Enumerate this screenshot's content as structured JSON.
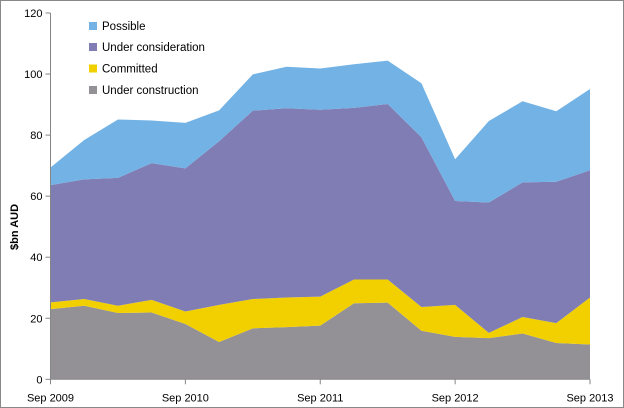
{
  "chart_data": {
    "type": "area",
    "stacked": true,
    "ylabel": "$bn AUD",
    "xlabel": "",
    "ylim": [
      0,
      120
    ],
    "yticks": [
      0,
      20,
      40,
      60,
      80,
      100,
      120
    ],
    "x_tick_labels": [
      "Sep 2009",
      "Sep 2010",
      "Sep 2011",
      "Sep 2012",
      "Sep 2013"
    ],
    "points_per_tick_interval": 4,
    "grid": false,
    "legend_position": "top-left",
    "series": [
      {
        "name": "Under construction",
        "color": "#939196",
        "values": [
          23.0,
          24.1,
          21.7,
          21.9,
          18.1,
          12.2,
          16.7,
          17.1,
          17.6,
          24.9,
          25.1,
          15.9,
          13.9,
          13.5,
          15.0,
          11.9,
          11.4
        ]
      },
      {
        "name": "Committed",
        "color": "#f2d000",
        "values": [
          2.2,
          2.2,
          2.4,
          4.1,
          4.1,
          12.2,
          9.6,
          9.7,
          9.5,
          7.8,
          7.6,
          7.8,
          10.5,
          1.7,
          5.4,
          6.5,
          15.4
        ]
      },
      {
        "name": "Under consideration",
        "color": "#807db4",
        "values": [
          38.4,
          39.2,
          41.9,
          44.8,
          46.9,
          53.6,
          61.7,
          62.0,
          61.2,
          56.2,
          57.5,
          55.6,
          34.0,
          42.7,
          44.1,
          46.3,
          41.7
        ]
      },
      {
        "name": "Possible",
        "color": "#72b2e4",
        "values": [
          5.8,
          12.9,
          19.1,
          14.0,
          14.9,
          10.1,
          11.9,
          13.6,
          13.5,
          14.3,
          14.2,
          17.7,
          13.7,
          26.7,
          26.6,
          23.1,
          26.6
        ]
      }
    ],
    "legend_order": [
      "Possible",
      "Under consideration",
      "Committed",
      "Under construction"
    ]
  }
}
